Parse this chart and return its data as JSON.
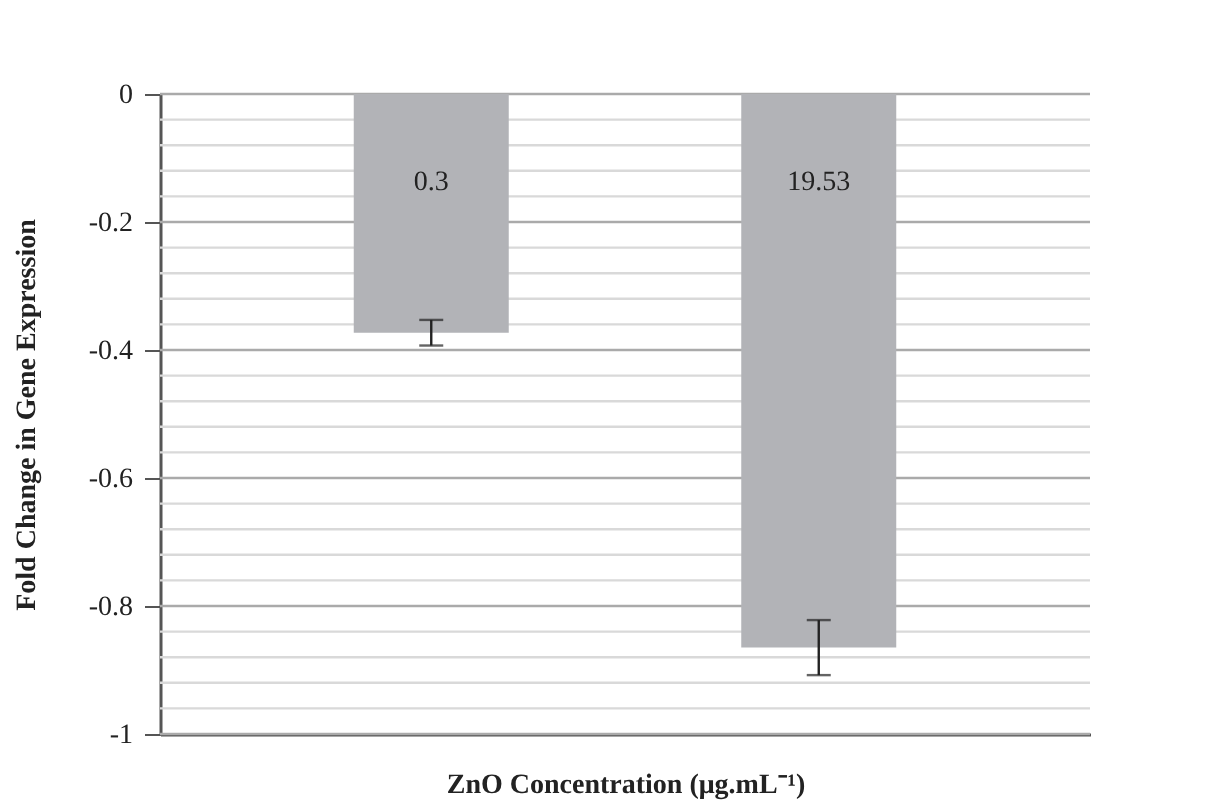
{
  "chart_data": {
    "type": "bar",
    "xlabel": "ZnO Concentration (μg.mL⁻¹)",
    "ylabel": "Fold Change in Gene Expression",
    "categories": [
      "0.3",
      "19.53"
    ],
    "values": [
      -0.373,
      -0.865
    ],
    "errors": [
      0.02,
      0.043
    ],
    "color": "#b2b3b7",
    "ylim": [
      -1,
      0
    ],
    "yticks": [
      0,
      {
        "value": -0.04,
        "label": null
      },
      {
        "value": -0.08,
        "label": null
      },
      {
        "value": -0.12,
        "label": null
      },
      {
        "value": -0.16,
        "label": null
      },
      -0.2,
      {
        "value": -0.24,
        "label": null
      },
      {
        "value": -0.28,
        "label": null
      },
      {
        "value": -0.32,
        "label": null
      },
      {
        "value": -0.36,
        "label": null
      },
      -0.4,
      {
        "value": -0.44,
        "label": null
      },
      {
        "value": -0.48,
        "label": null
      },
      {
        "value": -0.52,
        "label": null
      },
      {
        "value": -0.56,
        "label": null
      },
      -0.6,
      {
        "value": -0.64,
        "label": null
      },
      {
        "value": -0.68,
        "label": null
      },
      {
        "value": -0.72,
        "label": null
      },
      {
        "value": -0.76,
        "label": null
      },
      -0.8,
      {
        "value": -0.84,
        "label": null
      },
      {
        "value": -0.88,
        "label": null
      },
      {
        "value": -0.92,
        "label": null
      },
      {
        "value": -0.96,
        "label": null
      },
      -1
    ],
    "grid": "y",
    "tick_labels": "y"
  }
}
